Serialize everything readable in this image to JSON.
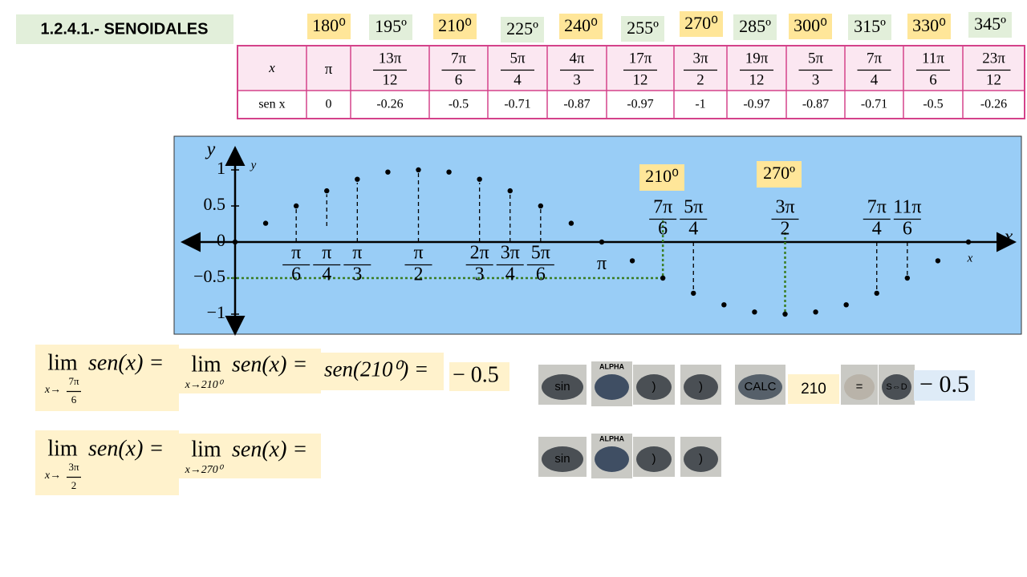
{
  "title": "1.2.4.1.- SENOIDALES",
  "degree_labels": [
    "180⁰",
    "195º",
    "210⁰",
    "225º",
    "240⁰",
    "255º",
    "270⁰",
    "285º",
    "300⁰",
    "315º",
    "330⁰",
    "345º"
  ],
  "table": {
    "row_headers": [
      "x",
      "sen x"
    ],
    "x_row": [
      "π",
      {
        "num": "13π",
        "den": "12"
      },
      {
        "num": "7π",
        "den": "6"
      },
      {
        "num": "5π",
        "den": "4"
      },
      {
        "num": "4π",
        "den": "3"
      },
      {
        "num": "17π",
        "den": "12"
      },
      {
        "num": "3π",
        "den": "2"
      },
      {
        "num": "19π",
        "den": "12"
      },
      {
        "num": "5π",
        "den": "3"
      },
      {
        "num": "7π",
        "den": "4"
      },
      {
        "num": "11π",
        "den": "6"
      },
      {
        "num": "23π",
        "den": "12"
      }
    ],
    "sen_row": [
      "0",
      "-0.26",
      "-0.5",
      "-0.71",
      "-0.87",
      "-0.97",
      "-1",
      "-0.97",
      "-0.87",
      "-0.71",
      "-0.5",
      "-0.26"
    ]
  },
  "graph": {
    "y_label": "y",
    "y_label_small": "y",
    "x_label": "x",
    "x_label_small": "x",
    "yticks": [
      1,
      0.5,
      0,
      {
        "value": -0.5,
        "label": "−0.5"
      },
      {
        "value": -1,
        "label": "−1"
      }
    ],
    "x_deg": [
      0,
      15,
      30,
      45,
      60,
      75,
      90,
      105,
      120,
      135,
      150,
      165,
      180,
      195,
      210,
      225,
      240,
      255,
      270,
      285,
      300,
      315,
      330,
      345,
      360
    ],
    "values": [
      0,
      0.26,
      0.5,
      0.71,
      0.87,
      0.97,
      1,
      0.97,
      0.87,
      0.71,
      0.5,
      0.26,
      0,
      -0.26,
      -0.5,
      -0.71,
      -0.87,
      -0.97,
      -1,
      -0.97,
      -0.87,
      -0.71,
      -0.5,
      -0.26,
      0
    ],
    "angle_labels": [
      {
        "num": "π",
        "den": "6"
      },
      {
        "num": "π",
        "den": "4"
      },
      {
        "num": "π",
        "den": "3"
      },
      {
        "num": "π",
        "den": "2"
      },
      {
        "num": "2π",
        "den": "3"
      },
      {
        "num": "3π",
        "den": "4"
      },
      {
        "num": "5π",
        "den": "6"
      },
      "π",
      {
        "num": "7π",
        "den": "6"
      },
      {
        "num": "5π",
        "den": "4"
      },
      {
        "num": "3π",
        "den": "2"
      },
      {
        "num": "7π",
        "den": "4"
      },
      {
        "num": "11π",
        "den": "6"
      }
    ],
    "callouts": [
      "210⁰",
      "270º"
    ]
  },
  "formulas": [
    {
      "parts": [
        {
          "lim": "lim",
          "sub": "x→",
          "sub_frac": {
            "num": "7π",
            "den": "6"
          },
          "expr": "sen(x) ="
        },
        {
          "lim": "lim",
          "sub": "x→210⁰",
          "expr": "sen(x) ="
        },
        {
          "expr": "sen(210⁰) ="
        },
        {
          "expr": "− 0.5"
        }
      ]
    },
    {
      "parts": [
        {
          "lim": "lim",
          "sub": "x→",
          "sub_frac": {
            "num": "3π",
            "den": "2"
          },
          "expr": "sen(x) ="
        },
        {
          "lim": "lim",
          "sub": "x→270⁰",
          "expr": "sen(x) ="
        }
      ]
    }
  ],
  "calculator": [
    {
      "keys": [
        "sin",
        "ALPHA",
        ")",
        ")",
        "CALC",
        "210",
        "=",
        "S⇔D"
      ],
      "result": "− 0.5"
    },
    {
      "keys": [
        "sin",
        "ALPHA",
        ")",
        ")"
      ]
    }
  ]
}
